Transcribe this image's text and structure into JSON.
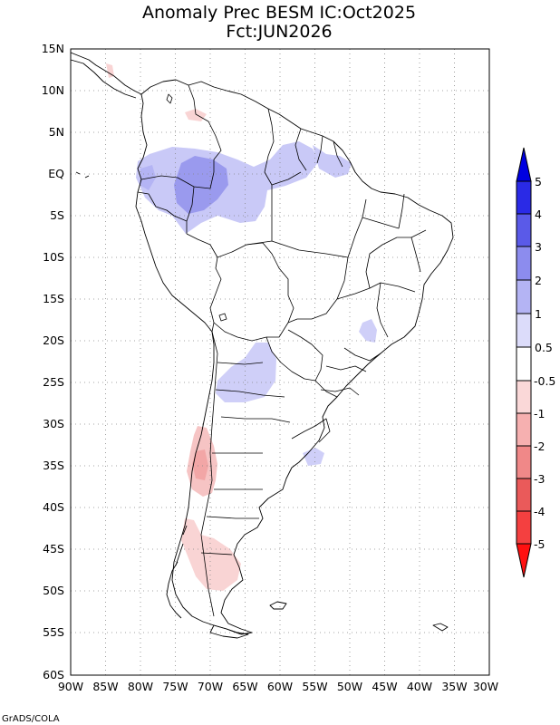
{
  "title": {
    "line1": "Anomaly Prec BESM IC:Oct2025",
    "line2": "Fct:JUN2026"
  },
  "map": {
    "lon_range": [
      -90,
      -30
    ],
    "lat_range": [
      -60,
      15
    ],
    "lat_labels": [
      "15N",
      "10N",
      "5N",
      "EQ",
      "5S",
      "10S",
      "15S",
      "20S",
      "25S",
      "30S",
      "35S",
      "40S",
      "45S",
      "50S",
      "55S",
      "60S"
    ],
    "lon_labels": [
      "90W",
      "85W",
      "80W",
      "75W",
      "70W",
      "65W",
      "60W",
      "55W",
      "50W",
      "45W",
      "40W",
      "35W",
      "30W"
    ]
  },
  "colorbar": {
    "labels": [
      "5",
      "4",
      "3",
      "2",
      "1",
      "0.5",
      "-0.5",
      "-1",
      "-2",
      "-3",
      "-4",
      "-5"
    ],
    "colors": [
      "#0000e0",
      "#2a2ae6",
      "#5a5ae8",
      "#8c8cee",
      "#b4b4f4",
      "#dcdcfa",
      "#ffffff",
      "#fad8d8",
      "#f6b0b0",
      "#f08888",
      "#ea5a5a",
      "#ff1010"
    ]
  },
  "anomaly_regions": [
    {
      "name": "western-amazon-wet",
      "level": 1,
      "color": "#c9c9f7"
    },
    {
      "name": "western-amazon-core",
      "level": 2,
      "color": "#9a9aee"
    },
    {
      "name": "guiana-wet",
      "level": 1,
      "color": "#c9c9f7"
    },
    {
      "name": "paraguay-wet",
      "level": 1,
      "color": "#cfcff8"
    },
    {
      "name": "chile-dry",
      "level": -1,
      "color": "#f6c4c4"
    },
    {
      "name": "patagonia-dry",
      "level": -1,
      "color": "#f9d4d4"
    }
  ],
  "credit": "GrADS/COLA"
}
